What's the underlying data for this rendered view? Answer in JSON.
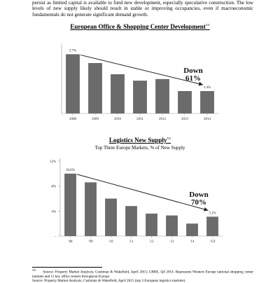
{
  "document": {
    "intro_text": "persist as limited capital is available to fund new development, especially speculative construction. The low levels of new supply likely should result in stable or improving occupancies, even if macroeconomic fundamentals do not generate significant demand growth.",
    "footnote_number": "XX",
    "footnote_text": "Source: Property Market Analysis; Cushman & Wakefield, April 2015; CBRE, Q4 2014. Represents Western Europe national shopping center markets and 11 key office centers throughout Europe.",
    "footnote_text_2": "Source: Property Market Analysis; Cushman & Wakefield, April 2015 (top 3 European logistics markets)."
  },
  "chart_data": [
    {
      "type": "bar",
      "title": "European Office & Shopping Center Development",
      "title_note": "XX",
      "categories": [
        "2008",
        "2009",
        "2010",
        "2011",
        "2012",
        "2013",
        "2014"
      ],
      "values": [
        3.7,
        3.15,
        2.45,
        2.05,
        2.15,
        1.4,
        1.4
      ],
      "ylim": [
        0,
        4.2
      ],
      "data_labels": {
        "first": "3.7%",
        "last": "1.4%"
      },
      "annotation": {
        "line1": "Down",
        "line2": "61%"
      },
      "bar_color": "#6b6b6b",
      "grid": false
    },
    {
      "type": "bar",
      "title": "Logistics New Supply",
      "title_note": "XX",
      "subtitle": "Top Three Europe Markets, % of New Supply",
      "categories": [
        "'08",
        "'09",
        "'10",
        "'11",
        "'12",
        "'13",
        "'14",
        "'15f"
      ],
      "values": [
        10.0,
        8.6,
        6.0,
        4.8,
        3.6,
        3.3,
        2.0,
        3.1
      ],
      "ylim": [
        0,
        12
      ],
      "yticks": [
        {
          "value": 12,
          "label": "12%"
        },
        {
          "value": 8,
          "label": "8%"
        },
        {
          "value": 4,
          "label": "4%"
        },
        {
          "value": 0,
          "label": "-"
        }
      ],
      "data_labels": {
        "first": "10.0%",
        "last": "3.1%"
      },
      "annotation": {
        "line1": "Down",
        "line2": "70%"
      },
      "bar_color": "#6b6b6b",
      "grid": false
    }
  ]
}
